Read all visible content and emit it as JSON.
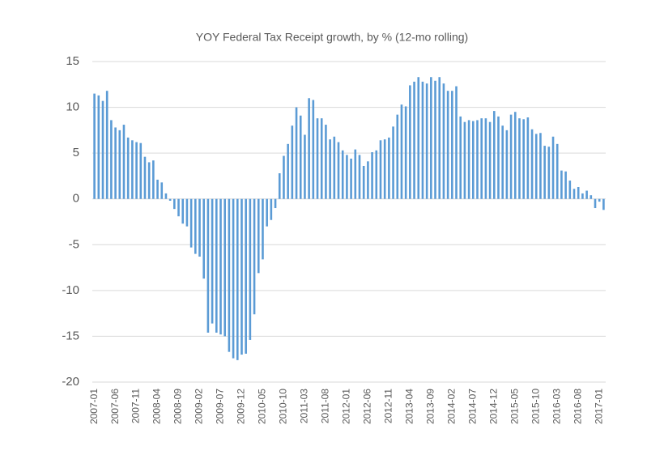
{
  "chart_data": {
    "type": "bar",
    "title": "YOY Federal Tax Receipt growth, by % (12-mo rolling)",
    "categories": [
      "2007-01",
      null,
      null,
      null,
      null,
      "2007-06",
      null,
      null,
      null,
      null,
      "2007-11",
      null,
      null,
      null,
      null,
      "2008-04",
      null,
      null,
      null,
      null,
      "2008-09",
      null,
      null,
      null,
      null,
      "2009-02",
      null,
      null,
      null,
      null,
      "2009-07",
      null,
      null,
      null,
      null,
      "2009-12",
      null,
      null,
      null,
      null,
      "2010-05",
      null,
      null,
      null,
      null,
      "2010-10",
      null,
      null,
      null,
      null,
      "2011-03",
      null,
      null,
      null,
      null,
      "2011-08",
      null,
      null,
      null,
      null,
      "2012-01",
      null,
      null,
      null,
      null,
      "2012-06",
      null,
      null,
      null,
      null,
      "2012-11",
      null,
      null,
      null,
      null,
      "2013-04",
      null,
      null,
      null,
      null,
      "2013-09",
      null,
      null,
      null,
      null,
      "2014-02",
      null,
      null,
      null,
      null,
      "2014-07",
      null,
      null,
      null,
      null,
      "2014-12",
      null,
      null,
      null,
      null,
      "2015-05",
      null,
      null,
      null,
      null,
      "2015-10",
      null,
      null,
      null,
      null,
      "2016-03",
      null,
      null,
      null,
      null,
      "2016-08",
      null,
      null,
      null,
      null,
      "2017-01",
      null
    ],
    "values": [
      11.5,
      11.3,
      10.7,
      11.8,
      8.6,
      7.8,
      7.5,
      8.1,
      6.7,
      6.4,
      6.2,
      6.1,
      4.6,
      4.0,
      4.2,
      2.1,
      1.8,
      0.6,
      -0.2,
      -1.1,
      -1.9,
      -2.7,
      -3.0,
      -5.3,
      -6.0,
      -6.3,
      -8.7,
      -14.6,
      -13.6,
      -14.6,
      -14.8,
      -15.0,
      -16.7,
      -17.4,
      -17.6,
      -17.0,
      -16.9,
      -15.4,
      -12.6,
      -8.1,
      -6.6,
      -3.0,
      -2.3,
      -1.0,
      2.8,
      4.7,
      6.0,
      8.0,
      10.0,
      9.1,
      7.0,
      11.0,
      10.8,
      8.8,
      8.8,
      8.1,
      6.5,
      6.8,
      6.2,
      5.3,
      4.8,
      4.4,
      5.4,
      4.8,
      3.6,
      4.1,
      5.1,
      5.3,
      6.4,
      6.5,
      6.7,
      7.9,
      9.2,
      10.3,
      10.1,
      12.4,
      12.8,
      13.3,
      12.8,
      12.6,
      13.3,
      12.9,
      13.3,
      12.6,
      11.8,
      11.8,
      12.3,
      9.0,
      8.4,
      8.6,
      8.5,
      8.6,
      8.8,
      8.8,
      8.4,
      9.6,
      9.0,
      8.0,
      7.5,
      9.2,
      9.5,
      8.8,
      8.7,
      8.9,
      7.6,
      7.1,
      7.2,
      5.8,
      5.7,
      6.8,
      6.0,
      3.1,
      3.0,
      2.0,
      1.1,
      1.3,
      0.6,
      0.9,
      0.4,
      -1.0,
      -0.3,
      -1.2
    ],
    "color": "#5b9bd5",
    "ylim": [
      -20,
      15
    ],
    "yticks": [
      -20,
      -15,
      -10,
      -5,
      0,
      5,
      10,
      15
    ],
    "grid": true
  }
}
